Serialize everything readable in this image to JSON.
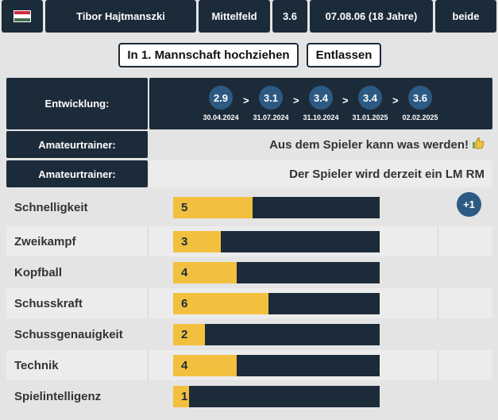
{
  "header": {
    "flag_colors": [
      "#cd2a3e",
      "#ffffff",
      "#436f4d"
    ],
    "player_name": "Tibor Hajtmanszki",
    "position": "Mittelfeld",
    "strength": "3.6",
    "birthdate": "07.08.06 (18 Jahre)",
    "foot": "beide"
  },
  "actions": {
    "promote_label": "In 1. Mannschaft hochziehen",
    "dismiss_label": "Entlassen"
  },
  "development": {
    "label": "Entwicklung:",
    "steps": [
      {
        "value": "2.9",
        "date": "30.04.2024"
      },
      {
        "value": "3.1",
        "date": "31.07.2024"
      },
      {
        "value": "3.4",
        "date": "31.10.2024"
      },
      {
        "value": "3.4",
        "date": "31.01.2025"
      },
      {
        "value": "3.6",
        "date": "02.02.2025"
      }
    ],
    "arrow": ">"
  },
  "trainer_comments": [
    {
      "label": "Amateurtrainer:",
      "text": "Aus dem Spieler kann was werden!",
      "icon": "thumbs-up-icon"
    },
    {
      "label": "Amateurtrainer:",
      "text": "Der Spieler wird derzeit ein LM RM"
    }
  ],
  "skills": [
    {
      "name": "Schnelligkeit",
      "value": "5",
      "level": 5
    },
    {
      "name": "Zweikampf",
      "value": "3",
      "level": 3
    },
    {
      "name": "Kopfball",
      "value": "4",
      "level": 4
    },
    {
      "name": "Schusskraft",
      "value": "6",
      "level": 6
    },
    {
      "name": "Schussgenauigkeit",
      "value": "2",
      "level": 2
    },
    {
      "name": "Technik",
      "value": "4",
      "level": 4
    },
    {
      "name": "Spielintelligenz",
      "value": "1",
      "level": 1
    }
  ],
  "skill_scale_max": 13,
  "skill_bonus": "+1",
  "colors": {
    "navy": "#1c2b3a",
    "bar_fill": "#f2c03e",
    "circle": "#2d5a82"
  }
}
